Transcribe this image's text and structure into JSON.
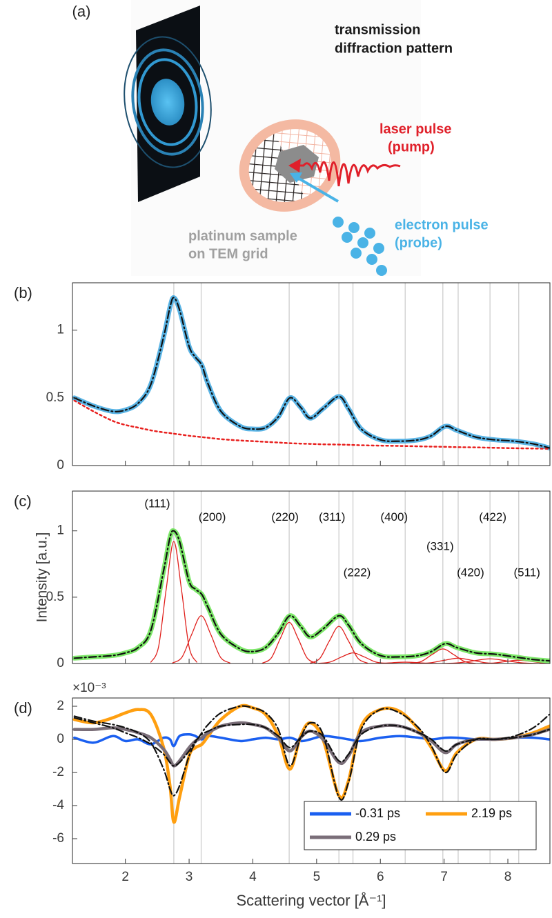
{
  "panel_a": {
    "label": "(a)",
    "pattern": [
      "transmission",
      "diffraction pattern"
    ],
    "laser": [
      "laser pulse",
      "(pump)"
    ],
    "sample": [
      "platinum sample",
      "on TEM grid"
    ],
    "electron": [
      "electron pulse",
      "(probe)"
    ]
  },
  "reflections": {
    "x": [
      2.76,
      3.19,
      4.57,
      5.35,
      5.57,
      6.39,
      6.98,
      7.22,
      7.72,
      8.17
    ],
    "labels": [
      "(111)",
      "(200)",
      "(220)",
      "(311)",
      "(222)",
      "(400)",
      "(331)",
      "(420)",
      "(422)",
      "(511)"
    ]
  },
  "chart_data": [
    {
      "type": "line",
      "panel_label": "(b)",
      "xlim": [
        1.17,
        8.66
      ],
      "ylim": [
        0,
        1.35
      ],
      "xticks": [
        2,
        3,
        4,
        5,
        6,
        7,
        8
      ],
      "yticks": [
        0,
        0.5,
        1
      ],
      "x": [
        1.2,
        1.5,
        1.8,
        2.0,
        2.2,
        2.4,
        2.6,
        2.7,
        2.76,
        2.85,
        3.0,
        3.1,
        3.2,
        3.3,
        3.5,
        3.8,
        4.0,
        4.2,
        4.4,
        4.58,
        4.75,
        4.9,
        5.1,
        5.35,
        5.5,
        5.7,
        6.0,
        6.3,
        6.6,
        6.8,
        7.02,
        7.2,
        7.5,
        7.8,
        8.1,
        8.4,
        8.65
      ],
      "series": [
        {
          "color": "#5ab4e5",
          "style": "solid",
          "width": 7,
          "values": [
            0.5,
            0.44,
            0.4,
            0.41,
            0.46,
            0.6,
            0.95,
            1.17,
            1.24,
            1.15,
            0.88,
            0.8,
            0.74,
            0.6,
            0.4,
            0.29,
            0.27,
            0.28,
            0.36,
            0.5,
            0.43,
            0.35,
            0.42,
            0.51,
            0.42,
            0.27,
            0.19,
            0.18,
            0.19,
            0.22,
            0.29,
            0.26,
            0.21,
            0.19,
            0.18,
            0.16,
            0.13
          ]
        },
        {
          "color": "#e8201e",
          "style": "dotted",
          "width": 2.5,
          "values": [
            0.48,
            0.4,
            0.33,
            0.3,
            0.28,
            0.26,
            0.245,
            0.24,
            0.235,
            0.23,
            0.22,
            0.215,
            0.21,
            0.205,
            0.195,
            0.185,
            0.18,
            0.175,
            0.17,
            0.165,
            0.162,
            0.16,
            0.157,
            0.155,
            0.153,
            0.15,
            0.147,
            0.145,
            0.142,
            0.14,
            0.138,
            0.136,
            0.134,
            0.131,
            0.128,
            0.126,
            0.124
          ]
        },
        {
          "color": "#111111",
          "style": "dashdot",
          "width": 2.2,
          "values": [
            0.5,
            0.44,
            0.4,
            0.41,
            0.46,
            0.6,
            0.95,
            1.17,
            1.24,
            1.15,
            0.88,
            0.8,
            0.74,
            0.6,
            0.4,
            0.29,
            0.27,
            0.28,
            0.36,
            0.5,
            0.43,
            0.35,
            0.42,
            0.51,
            0.42,
            0.27,
            0.19,
            0.18,
            0.19,
            0.22,
            0.29,
            0.26,
            0.21,
            0.19,
            0.18,
            0.16,
            0.13
          ]
        }
      ]
    },
    {
      "type": "line",
      "panel_label": "(c)",
      "ylabel": "Intensity [a.u.]",
      "show_reflection_labels": true,
      "xlim": [
        1.17,
        8.66
      ],
      "ylim": [
        0,
        1.3
      ],
      "xticks": [
        2,
        3,
        4,
        5,
        6,
        7,
        8
      ],
      "yticks": [
        0,
        0.5,
        1
      ],
      "x": [
        1.2,
        1.5,
        1.8,
        2.0,
        2.2,
        2.4,
        2.6,
        2.7,
        2.76,
        2.85,
        3.0,
        3.1,
        3.2,
        3.3,
        3.5,
        3.8,
        4.0,
        4.2,
        4.4,
        4.58,
        4.75,
        4.9,
        5.1,
        5.35,
        5.5,
        5.7,
        6.0,
        6.3,
        6.6,
        6.8,
        7.02,
        7.2,
        7.5,
        7.8,
        8.1,
        8.4,
        8.65
      ],
      "component_color": "#e0201c",
      "components": [
        {
          "x": [
            2.4,
            2.52,
            2.64,
            2.76,
            2.88,
            3.0,
            3.12
          ],
          "values": [
            0.01,
            0.124,
            0.558,
            0.92,
            0.558,
            0.124,
            0.01
          ]
        },
        {
          "x": [
            2.74,
            2.89,
            3.04,
            3.19,
            3.34,
            3.49,
            3.64
          ],
          "values": [
            0.004,
            0.049,
            0.219,
            0.36,
            0.219,
            0.049,
            0.004
          ]
        },
        {
          "x": [
            4.15,
            4.29,
            4.43,
            4.57,
            4.71,
            4.85,
            4.99
          ],
          "values": [
            0.003,
            0.042,
            0.188,
            0.31,
            0.188,
            0.042,
            0.003
          ]
        },
        {
          "x": [
            4.9,
            5.05,
            5.2,
            5.35,
            5.5,
            5.65,
            5.8
          ],
          "values": [
            0.003,
            0.038,
            0.17,
            0.28,
            0.17,
            0.038,
            0.003
          ]
        },
        {
          "x": [
            5.03,
            5.21,
            5.39,
            5.57,
            5.75,
            5.93,
            6.11
          ],
          "values": [
            0.001,
            0.011,
            0.049,
            0.08,
            0.049,
            0.011,
            0.001
          ]
        },
        {
          "x": [
            5.79,
            5.99,
            6.19,
            6.39,
            6.59,
            6.79,
            6.99
          ],
          "values": [
            0,
            0.001,
            0.006,
            0.01,
            0.006,
            0.001,
            0
          ]
        },
        {
          "x": [
            6.47,
            6.64,
            6.81,
            6.98,
            7.15,
            7.32,
            7.49
          ],
          "values": [
            0.001,
            0.015,
            0.067,
            0.11,
            0.067,
            0.015,
            0.001
          ]
        },
        {
          "x": [
            6.56,
            6.78,
            7.0,
            7.22,
            7.44,
            7.66,
            7.88
          ],
          "values": [
            0,
            0.005,
            0.024,
            0.04,
            0.024,
            0.005,
            0
          ]
        },
        {
          "x": [
            6.97,
            7.22,
            7.47,
            7.72,
            7.97,
            8.22,
            8.47
          ],
          "values": [
            0,
            0.005,
            0.021,
            0.035,
            0.021,
            0.005,
            0
          ]
        },
        {
          "x": [
            7.57,
            7.77,
            7.97,
            8.17,
            8.37,
            8.57,
            8.77
          ],
          "values": [
            0,
            0.003,
            0.015,
            0.025,
            0.015,
            0.003,
            0
          ]
        }
      ],
      "series": [
        {
          "color": "#7ee86a",
          "style": "solid",
          "width": 7,
          "values": [
            0.04,
            0.05,
            0.06,
            0.08,
            0.12,
            0.25,
            0.7,
            0.95,
            1.0,
            0.92,
            0.62,
            0.56,
            0.52,
            0.42,
            0.22,
            0.11,
            0.09,
            0.12,
            0.23,
            0.36,
            0.28,
            0.2,
            0.26,
            0.36,
            0.29,
            0.15,
            0.06,
            0.05,
            0.06,
            0.09,
            0.15,
            0.12,
            0.08,
            0.07,
            0.05,
            0.03,
            0.02
          ]
        },
        {
          "color": "#111111",
          "style": "dashdot",
          "width": 2.2,
          "values": [
            0.04,
            0.05,
            0.06,
            0.08,
            0.12,
            0.25,
            0.7,
            0.95,
            1.0,
            0.92,
            0.62,
            0.56,
            0.52,
            0.42,
            0.22,
            0.11,
            0.09,
            0.12,
            0.23,
            0.36,
            0.28,
            0.2,
            0.26,
            0.36,
            0.29,
            0.15,
            0.06,
            0.05,
            0.06,
            0.09,
            0.15,
            0.12,
            0.08,
            0.07,
            0.05,
            0.03,
            0.02
          ]
        }
      ]
    },
    {
      "type": "line",
      "panel_label": "(d)",
      "y_multiplier": "×10⁻³",
      "xlabel": "Scattering vector [Å⁻¹]",
      "xlim": [
        1.17,
        8.66
      ],
      "ylim": [
        -7.5,
        2.5
      ],
      "xticks": [
        2,
        3,
        4,
        5,
        6,
        7,
        8
      ],
      "yticks": [
        -6,
        -4,
        -2,
        0,
        2
      ],
      "legend": "lower right",
      "x": [
        1.2,
        1.5,
        1.8,
        2.0,
        2.2,
        2.4,
        2.6,
        2.7,
        2.76,
        2.85,
        3.0,
        3.1,
        3.2,
        3.3,
        3.5,
        3.8,
        4.0,
        4.2,
        4.4,
        4.58,
        4.75,
        4.9,
        5.1,
        5.35,
        5.5,
        5.7,
        6.0,
        6.3,
        6.6,
        6.8,
        7.02,
        7.2,
        7.5,
        7.8,
        8.1,
        8.4,
        8.65
      ],
      "series": [
        {
          "name": "-0.31 ps",
          "color": "#1a5ff0",
          "width": 3.5,
          "values": [
            0.1,
            -0.2,
            0.2,
            -0.1,
            0.0,
            -0.3,
            0.1,
            0.0,
            -0.4,
            0.2,
            0.3,
            0.2,
            0.0,
            0.2,
            0.1,
            -0.1,
            0.0,
            0.1,
            0.0,
            0.1,
            -0.1,
            0.0,
            0.2,
            0.1,
            0.0,
            -0.1,
            0.1,
            0.2,
            0.1,
            0.0,
            0.1,
            0.1,
            0.0,
            0.0,
            0.1,
            0.1,
            0.0
          ]
        },
        {
          "name": "2.19 ps",
          "color": "#ff9f10",
          "width": 4.5,
          "values": [
            1.2,
            1.0,
            1.3,
            1.6,
            1.8,
            1.5,
            -0.5,
            -2.8,
            -5.0,
            -3.5,
            -1.0,
            -0.5,
            -0.3,
            0.2,
            1.2,
            2.0,
            1.9,
            1.5,
            0.2,
            -1.8,
            0.2,
            1.0,
            0.0,
            -3.4,
            -2.5,
            0.8,
            1.8,
            1.7,
            0.6,
            -0.5,
            -1.9,
            -0.8,
            0.0,
            0.0,
            0.1,
            0.4,
            0.8
          ]
        },
        {
          "name": "0.29 ps",
          "color": "#7a6e78",
          "width": 4.5,
          "values": [
            0.6,
            0.6,
            0.7,
            0.6,
            0.4,
            0.1,
            -0.6,
            -1.2,
            -1.6,
            -1.3,
            -0.5,
            -0.1,
            0.1,
            0.4,
            0.8,
            1.0,
            0.9,
            0.7,
            0.1,
            -0.7,
            0.1,
            0.5,
            0.0,
            -1.4,
            -1.0,
            0.4,
            0.8,
            0.8,
            0.4,
            -0.1,
            -0.8,
            -0.3,
            0.0,
            0.0,
            0.1,
            0.3,
            0.6
          ]
        }
      ],
      "fits": [
        {
          "color": "#111111",
          "values": [
            1.4,
            1.1,
            0.9,
            0.7,
            0.4,
            -0.2,
            -1.8,
            -3.0,
            -3.4,
            -2.8,
            -1.0,
            -0.2,
            0.4,
            0.9,
            1.6,
            2.0,
            1.9,
            1.6,
            0.6,
            -1.6,
            0.1,
            1.0,
            0.3,
            -3.5,
            -2.6,
            0.6,
            1.8,
            1.6,
            0.7,
            -0.4,
            -2.0,
            -0.9,
            0.0,
            0.0,
            0.2,
            0.7,
            1.5
          ]
        },
        {
          "color": "#111111",
          "values": [
            1.3,
            1.0,
            0.7,
            0.4,
            0.1,
            -0.3,
            -0.9,
            -1.4,
            -1.6,
            -1.4,
            -0.7,
            -0.1,
            0.3,
            0.5,
            0.8,
            0.9,
            0.9,
            0.7,
            0.2,
            -0.5,
            0.1,
            0.5,
            0.2,
            -1.3,
            -0.9,
            0.3,
            0.8,
            0.8,
            0.4,
            0.0,
            -0.7,
            -0.3,
            0.0,
            0.0,
            0.1,
            0.3,
            0.6
          ]
        }
      ]
    }
  ]
}
